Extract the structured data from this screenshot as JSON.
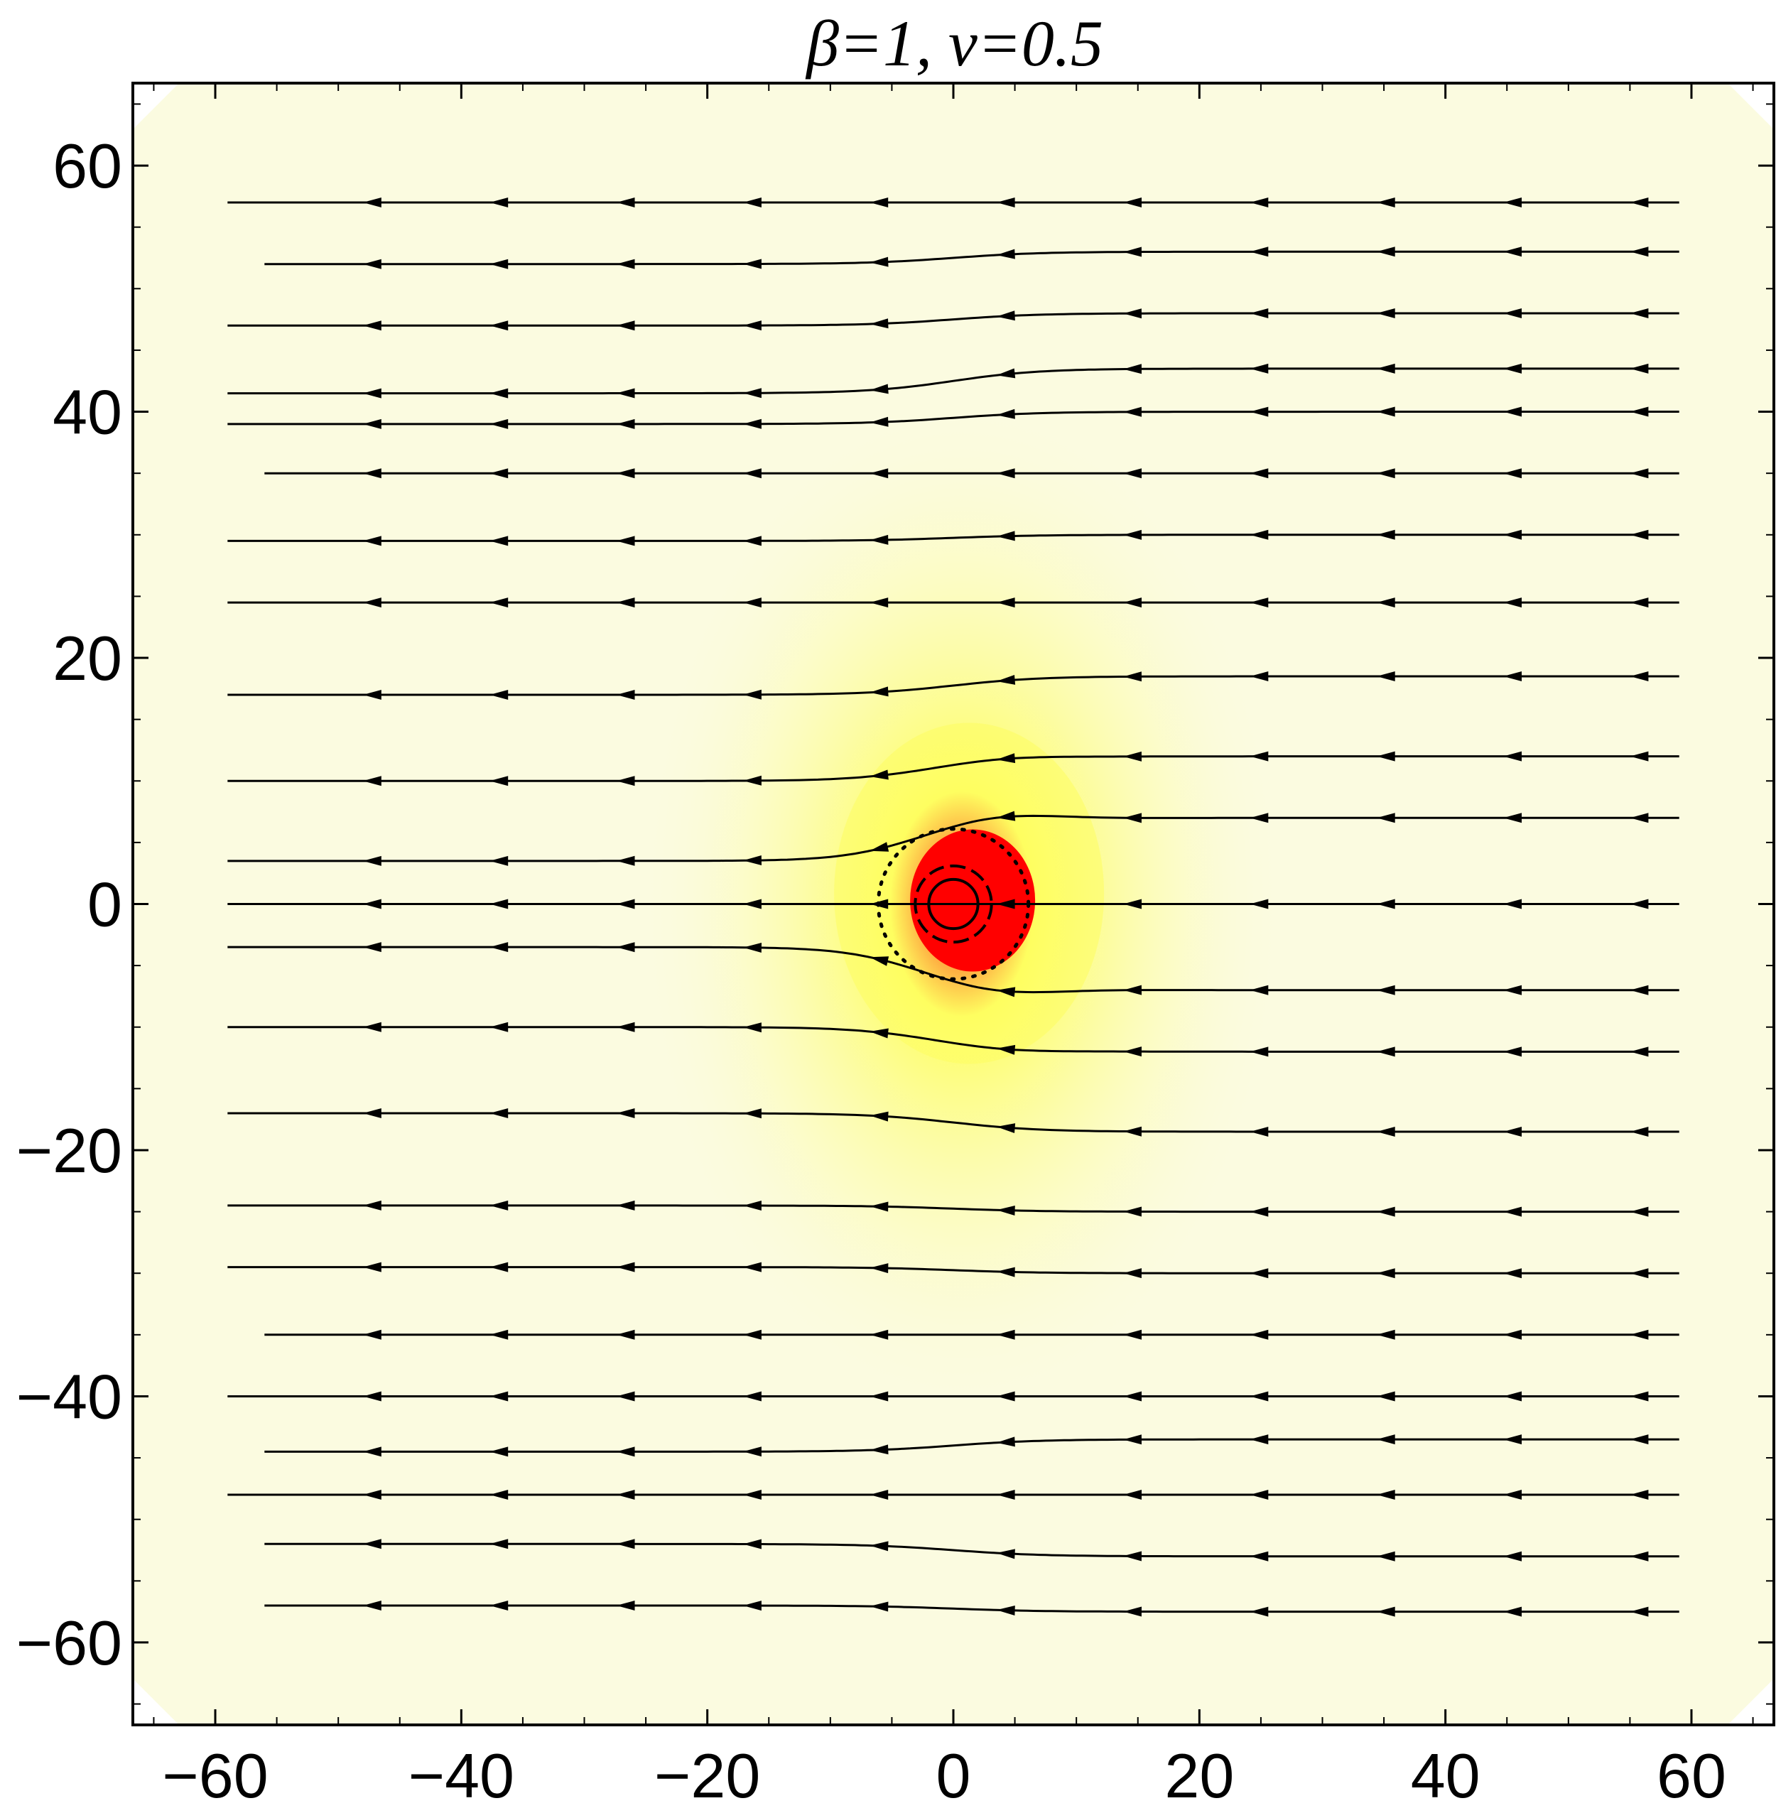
{
  "chart_data": {
    "type": "vector-field",
    "title": "β=1, v=0.5",
    "xlim": [
      -66.7,
      66.7
    ],
    "ylim": [
      -66.7,
      66.7
    ],
    "x_ticks": [
      -60,
      -40,
      -20,
      0,
      20,
      40,
      60
    ],
    "y_ticks": [
      -60,
      -40,
      -20,
      0,
      20,
      40,
      60
    ],
    "x_tick_labels": [
      "−60",
      "−40",
      "−20",
      "0",
      "20",
      "40",
      "60"
    ],
    "y_tick_labels": [
      "−60",
      "−40",
      "−20",
      "0",
      "20",
      "40",
      "60"
    ],
    "field_domain": {
      "x": [
        -59,
        60
      ],
      "y": [
        -60,
        60
      ]
    },
    "flow_direction": "negative-x",
    "density_map": {
      "colors": [
        "#fbfbe0",
        "#fefe60",
        "#ff0000"
      ],
      "peak_center": [
        0.7,
        0
      ],
      "background": "#fbfbe0"
    },
    "circles": [
      {
        "style": "solid",
        "center": [
          0,
          0
        ],
        "radius": 2.0
      },
      {
        "style": "dashed",
        "center": [
          0,
          0
        ],
        "radius": 3.1
      },
      {
        "style": "dotted",
        "center": [
          0,
          0
        ],
        "radius": 6.1
      }
    ],
    "streamlines": [
      {
        "y_right": 57,
        "y_left": 57,
        "x_min": -59,
        "x_max": 59
      },
      {
        "y_right": 53,
        "y_left": 52,
        "x_min": -56,
        "x_max": 59
      },
      {
        "y_right": 48,
        "y_left": 47,
        "x_min": -59,
        "x_max": 59
      },
      {
        "y_right": 43.5,
        "y_left": 41.5,
        "x_min": -59,
        "x_max": 59
      },
      {
        "y_right": 40,
        "y_left": 39,
        "x_min": -59,
        "x_max": 59
      },
      {
        "y_right": 35,
        "y_left": 35,
        "x_min": -56,
        "x_max": 59
      },
      {
        "y_right": 30,
        "y_left": 29.5,
        "x_min": -59,
        "x_max": 59
      },
      {
        "y_right": 24.5,
        "y_left": 24.5,
        "x_min": -59,
        "x_max": 59
      },
      {
        "y_right": 18.5,
        "y_left": 17,
        "x_min": -59,
        "x_max": 59
      },
      {
        "y_right": 12,
        "y_left": 10,
        "x_min": -59,
        "x_max": 59
      },
      {
        "y_right": 7,
        "y_left": 3.5,
        "x_min": -59,
        "x_max": 59
      },
      {
        "y_right": 0,
        "y_left": 0,
        "x_min": -59,
        "x_max": 59
      },
      {
        "y_right": -7,
        "y_left": -3.5,
        "x_min": -59,
        "x_max": 59
      },
      {
        "y_right": -12,
        "y_left": -10,
        "x_min": -59,
        "x_max": 59
      },
      {
        "y_right": -18.5,
        "y_left": -17,
        "x_min": -59,
        "x_max": 59
      },
      {
        "y_right": -25,
        "y_left": -24.5,
        "x_min": -59,
        "x_max": 59
      },
      {
        "y_right": -30,
        "y_left": -29.5,
        "x_min": -59,
        "x_max": 59
      },
      {
        "y_right": -35,
        "y_left": -35,
        "x_min": -56,
        "x_max": 59
      },
      {
        "y_right": -40,
        "y_left": -40,
        "x_min": -59,
        "x_max": 59
      },
      {
        "y_right": -43.5,
        "y_left": -44.5,
        "x_min": -56,
        "x_max": 59
      },
      {
        "y_right": -48,
        "y_left": -48,
        "x_min": -59,
        "x_max": 59
      },
      {
        "y_right": -53,
        "y_left": -52,
        "x_min": -56,
        "x_max": 59
      },
      {
        "y_right": -57.5,
        "y_left": -57,
        "x_min": -56,
        "x_max": 59
      }
    ]
  }
}
